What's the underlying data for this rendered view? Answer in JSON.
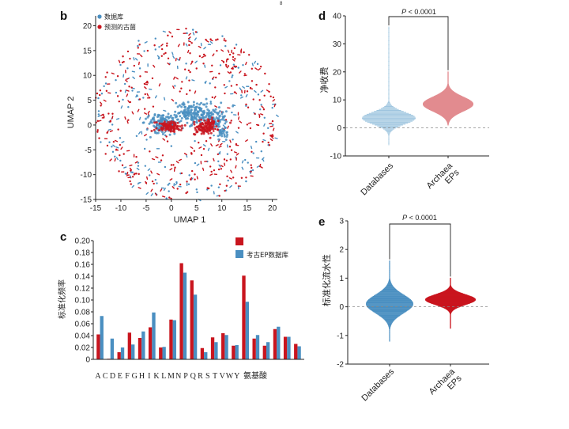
{
  "colors": {
    "db": "#4a8fc1",
    "pred": "#c9151e",
    "db_light": "#9ec5df",
    "pred_light": "#e28b8f"
  },
  "page_mark": "8",
  "chart_data": [
    {
      "id": "b",
      "type": "scatter",
      "panel": "b",
      "xlabel": "UMAP 1",
      "ylabel": "UMAP 2",
      "xlim": [
        -15,
        21
      ],
      "ylim": [
        -15,
        22
      ],
      "xticks": [
        -15,
        -10,
        -5,
        0,
        5,
        10,
        15,
        20
      ],
      "yticks": [
        -15,
        -10,
        -5,
        0,
        5,
        10,
        15,
        20
      ],
      "legend": [
        "数据库",
        "预测的古菌"
      ],
      "legend_position": "top-left",
      "series": [
        {
          "name": "数据库",
          "color": "#4a8fc1",
          "clusters": [
            {
              "x": -1.5,
              "y": 0.3,
              "sx": 1.6,
              "sy": 0.9,
              "n": 160
            },
            {
              "x": 3.0,
              "y": 2.5,
              "sx": 1.0,
              "sy": 1.0,
              "n": 60
            },
            {
              "x": 6.0,
              "y": 2.0,
              "sx": 1.8,
              "sy": 1.2,
              "n": 140
            },
            {
              "x": 9.0,
              "y": 1.0,
              "sx": 1.0,
              "sy": 1.0,
              "n": 50
            },
            {
              "x": 10.0,
              "y": -1.5,
              "sx": 0.6,
              "sy": 0.6,
              "n": 25
            }
          ],
          "background_n": 230
        },
        {
          "name": "预测的古菌",
          "color": "#c9151e",
          "clusters": [
            {
              "x": -0.5,
              "y": -0.3,
              "sx": 1.2,
              "sy": 0.5,
              "n": 110
            },
            {
              "x": 6.5,
              "y": -0.5,
              "sx": 1.0,
              "sy": 0.7,
              "n": 90
            },
            {
              "x": 8.0,
              "y": 0.5,
              "sx": 0.6,
              "sy": 0.5,
              "n": 30
            }
          ],
          "background_n": 400
        }
      ]
    },
    {
      "id": "c",
      "type": "bar",
      "panel": "c",
      "xlabel": "氨基酸",
      "ylabel": "标准化频率",
      "ylim": [
        0,
        0.2
      ],
      "yticks": [
        0,
        0.02,
        0.04,
        0.06,
        0.08,
        0.1,
        0.12,
        0.14,
        0.16,
        0.18,
        0.2
      ],
      "ytick_labels": [
        "0",
        "0.02",
        "0.04",
        "0.06",
        "0.08",
        "0.10",
        "0.12",
        "0.14",
        "0.16",
        "0.18",
        "0.20"
      ],
      "legend_position": "top-right",
      "categories": [
        "A",
        "C",
        "D",
        "E",
        "F",
        "G",
        "H",
        "I",
        "K",
        "L",
        "M",
        "N",
        "P",
        "Q",
        "R",
        "S",
        "T",
        "V",
        "W",
        "Y"
      ],
      "series": [
        {
          "name": "",
          "color": "#c9151e",
          "values": [
            0.042,
            0.001,
            0.012,
            0.045,
            0.036,
            0.054,
            0.02,
            0.067,
            0.162,
            0.133,
            0.019,
            0.037,
            0.044,
            0.023,
            0.141,
            0.035,
            0.023,
            0.051,
            0.038,
            0.026
          ]
        },
        {
          "name": "考古EP数据库",
          "color": "#4a8fc1",
          "values": [
            0.073,
            0.035,
            0.02,
            0.025,
            0.047,
            0.079,
            0.021,
            0.066,
            0.146,
            0.109,
            0.012,
            0.029,
            0.041,
            0.024,
            0.097,
            0.041,
            0.029,
            0.055,
            0.038,
            0.022
          ]
        }
      ]
    },
    {
      "id": "d",
      "type": "violin",
      "panel": "d",
      "ylabel": "净收费",
      "ylim": [
        -10,
        40
      ],
      "yticks": [
        -10,
        0,
        10,
        20,
        30,
        40
      ],
      "categories": [
        "Databases",
        "Archaea EPs"
      ],
      "category_lines": [
        [
          "Databases"
        ],
        [
          "Archaea",
          "EPs"
        ]
      ],
      "significance": "P < 0.0001",
      "reference_line": 0,
      "distributions": [
        {
          "name": "Databases",
          "color": "#9ec5df",
          "median": 3.5,
          "spread": 2.2,
          "min": -6,
          "max": 36,
          "halfwidth": 34
        },
        {
          "name": "Archaea EPs",
          "color": "#e28b8f",
          "median": 8.5,
          "spread": 2.6,
          "min": 1,
          "max": 20,
          "halfwidth": 32
        }
      ]
    },
    {
      "id": "e",
      "type": "violin",
      "panel": "e",
      "ylabel": "标准化流水性",
      "ylim": [
        -2,
        3
      ],
      "yticks": [
        -2,
        -1,
        0,
        1,
        2,
        3
      ],
      "categories": [
        "Databases",
        "Archaea EPs"
      ],
      "category_lines": [
        [
          "Databases"
        ],
        [
          "Archaea",
          "EPs"
        ]
      ],
      "significance": "P < 0.0001",
      "reference_line": 0,
      "distributions": [
        {
          "name": "Databases",
          "color": "#4a8fc1",
          "median": 0.1,
          "spread": 0.32,
          "min": -1.2,
          "max": 1.6,
          "halfwidth": 30
        },
        {
          "name": "Archaea EPs",
          "color": "#c9151e",
          "median": 0.25,
          "spread": 0.18,
          "min": -0.75,
          "max": 1.0,
          "halfwidth": 32
        }
      ]
    }
  ]
}
